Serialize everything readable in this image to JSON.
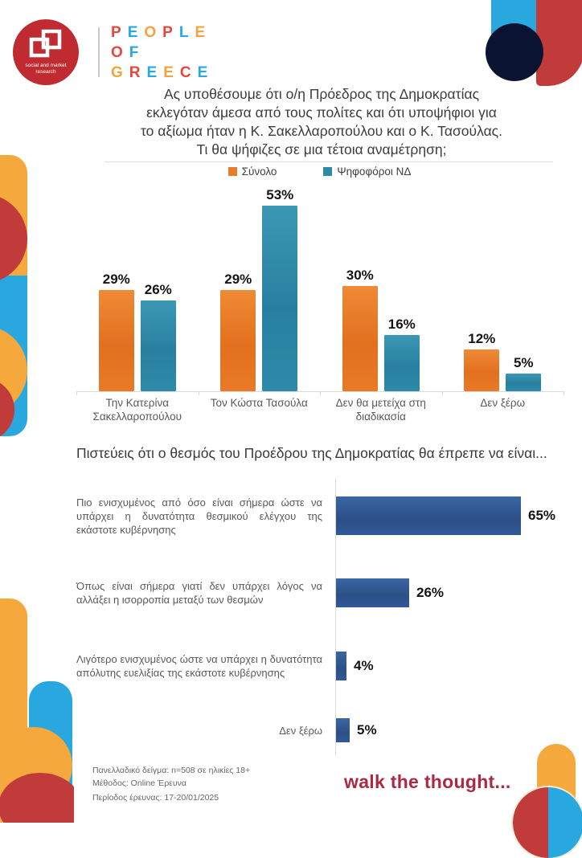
{
  "logo": {
    "circle_caption_lines": [
      "social and market",
      "research"
    ],
    "circle_color": "#bf2b30",
    "wordmark_lines": [
      "PEOPLE",
      "OF",
      "GREECE"
    ],
    "wordmark_colors": [
      "#e8453c",
      "#29a8df",
      "#f2a33c"
    ]
  },
  "chart_data": [
    {
      "type": "bar",
      "orientation": "vertical",
      "title": "Ας υποθέσουμε ότι ο/η Πρόεδρος της Δημοκρατίας εκλεγόταν άμεσα από τους πολίτες και ότι υποψήφιοι για το αξίωμα ήταν η Κ. Σακελλαροπούλου και ο Κ. Τασούλας. Τι θα ψήφιζες σε μια τέτοια αναμέτρηση;",
      "title_lines": [
        "Ας υποθέσουμε ότι ο/η Πρόεδρος της Δημοκρατίας",
        "εκλεγόταν άμεσα από τους πολίτες και ότι υποψήφιοι για",
        "το αξίωμα ήταν η Κ. Σακελλαροπούλου και ο Κ. Τασούλας.",
        "Τι θα ψήφιζες σε μια τέτοια αναμέτρηση;"
      ],
      "categories": [
        "Την Κατερίνα Σακελλαροπούλου",
        "Τον Κώστα Τασούλα",
        "Δεν θα μετείχα στη διαδικασία",
        "Δεν ξέρω"
      ],
      "series": [
        {
          "name": "Σύνολο",
          "color": "#e87c28",
          "values": [
            29,
            29,
            30,
            12
          ]
        },
        {
          "name": "Ψηφοφόροι ΝΔ",
          "color": "#2f8aa8",
          "values": [
            26,
            53,
            16,
            5
          ]
        }
      ],
      "unit": "%",
      "ylim": [
        0,
        60
      ],
      "grid": false,
      "legend_position": "top",
      "value_labels": true
    },
    {
      "type": "bar",
      "orientation": "horizontal",
      "title": "Πιστεύεις ότι ο θεσμός του Προέδρου της Δημοκρατίας θα έπρεπε να είναι...",
      "categories": [
        "Πιο ενισχυμένος από όσο είναι σήμερα ώστε να υπάρχει η δυνατότητα θεσμικού ελέγχου της εκάστοτε κυβέρνησης",
        "Όπως είναι σήμερα γιατί δεν υπάρχει λόγος να αλλάξει η ισορροπία μεταξύ των θεσμών",
        "Λιγότερο ενισχυμένος ώστε να υπάρχει η δυνατότητα απόλυτης ευελιξίας της εκάστοτε κυβέρνησης",
        "Δεν ξέρω"
      ],
      "values": [
        65,
        26,
        4,
        5
      ],
      "bar_color": "#2e5b95",
      "unit": "%",
      "xlim": [
        0,
        100
      ],
      "grid": false,
      "value_labels": true
    }
  ],
  "footer": {
    "lines": [
      "Πανελλαδικό δείγμα: n=508 σε ηλικίες 18+",
      "Μέθοδος: Online Έρευνα",
      "Περίοδος έρευνας: 17-20/01/2025"
    ]
  },
  "tagline": "walk the thought...",
  "colors": {
    "series_total": "#e87c28",
    "series_nd_voters": "#2f8aa8",
    "horizontal_bar": "#2e5b95",
    "accent_red": "#c23b3b",
    "accent_orange": "#f5a83c",
    "accent_blue": "#29a8df",
    "accent_navy": "#0a1330",
    "tagline_red": "#ad2843"
  }
}
